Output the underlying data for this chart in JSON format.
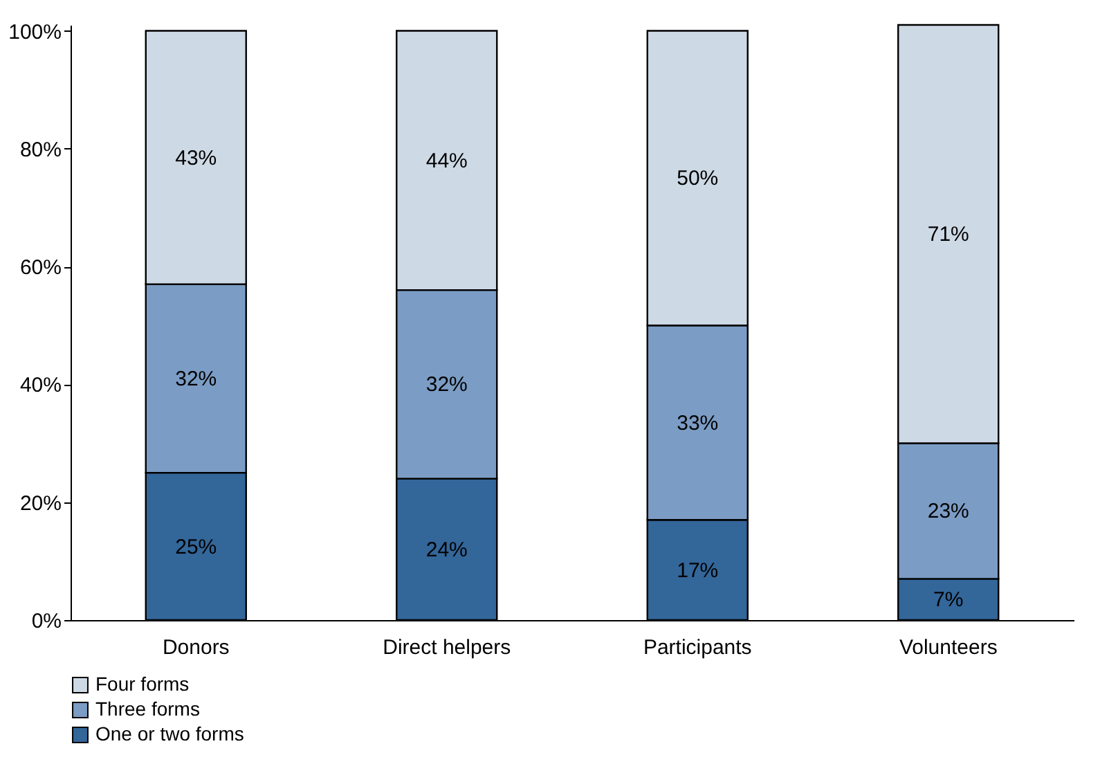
{
  "chart_data": {
    "type": "bar",
    "stacked": true,
    "categories": [
      "Donors",
      "Direct helpers",
      "Participants",
      "Volunteers"
    ],
    "series": [
      {
        "name": "One or two forms",
        "color": "#336699",
        "values": [
          25,
          24,
          17,
          7
        ],
        "value_labels": [
          "25%",
          "24%",
          "17%",
          "7%"
        ]
      },
      {
        "name": "Three forms",
        "color": "#7b9cc4",
        "values": [
          32,
          32,
          33,
          23
        ],
        "value_labels": [
          "32%",
          "32%",
          "33%",
          "23%"
        ]
      },
      {
        "name": "Four forms",
        "color": "#cdd9e5",
        "values": [
          43,
          44,
          50,
          71
        ],
        "value_labels": [
          "43%",
          "44%",
          "50%",
          "71%"
        ]
      }
    ],
    "ylim": [
      0,
      101
    ],
    "yticks": [
      {
        "value": 0,
        "label": "0%"
      },
      {
        "value": 20,
        "label": "20%"
      },
      {
        "value": 40,
        "label": "40%"
      },
      {
        "value": 60,
        "label": "60%"
      },
      {
        "value": 80,
        "label": "80%"
      },
      {
        "value": 100,
        "label": "100%"
      }
    ],
    "grid": false,
    "legend": "bottom left"
  }
}
